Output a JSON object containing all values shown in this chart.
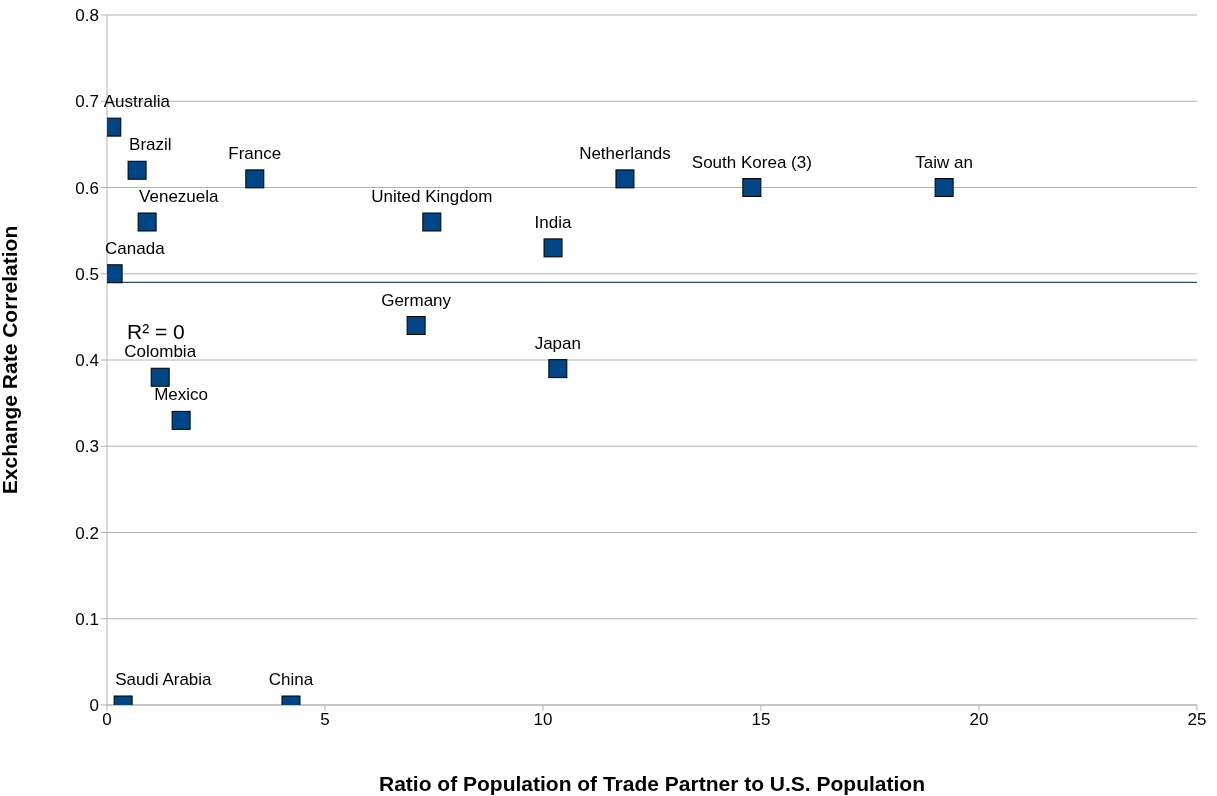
{
  "chart_data": {
    "type": "scatter",
    "xlabel": "Ratio of Population of Trade Partner to U.S. Population",
    "ylabel": "Exchange Rate Correlation",
    "xlim": [
      0,
      25
    ],
    "xticks": [
      0,
      5,
      10,
      15,
      20,
      25
    ],
    "ylim": [
      0,
      0.8
    ],
    "yticks": [
      0,
      0.1,
      0.2,
      0.3,
      0.4,
      0.5,
      0.6,
      0.7,
      0.8
    ],
    "grid": "y",
    "marker": "square",
    "legend": false,
    "series": [
      {
        "color": "#004586",
        "x": [
          0.11,
          0.69,
          0.92,
          0.14,
          3.39,
          7.45,
          10.23,
          11.88,
          14.79,
          19.2,
          7.09,
          10.34,
          1.22,
          1.7,
          0.37,
          4.22
        ],
        "values": [
          0.67,
          0.62,
          0.56,
          0.5,
          0.61,
          0.56,
          0.53,
          0.61,
          0.6,
          0.6,
          0.44,
          0.39,
          0.38,
          0.33,
          0,
          0
        ]
      },
      {
        "type": "line",
        "color": "#2a4a6a",
        "marker": "none",
        "x": [
          0,
          25
        ],
        "values": [
          0.49,
          0.49
        ]
      }
    ],
    "annotations": [
      {
        "text": "Australia",
        "x": 0.11,
        "y": 0.67
      },
      {
        "text": "Brazil",
        "x": 0.69,
        "y": 0.62
      },
      {
        "text": "Venezuela",
        "x": 0.92,
        "y": 0.56
      },
      {
        "text": "Canada",
        "x": 0.14,
        "y": 0.5
      },
      {
        "text": "France",
        "x": 3.39,
        "y": 0.61
      },
      {
        "text": "United Kingdom",
        "x": 7.45,
        "y": 0.56
      },
      {
        "text": "India",
        "x": 10.23,
        "y": 0.53
      },
      {
        "text": "Netherlands",
        "x": 11.88,
        "y": 0.61
      },
      {
        "text": "South Korea (3)",
        "x": 14.79,
        "y": 0.6
      },
      {
        "text": "Taiw an",
        "x": 19.2,
        "y": 0.6
      },
      {
        "text": "Germany",
        "x": 7.09,
        "y": 0.44
      },
      {
        "text": "Japan",
        "x": 10.34,
        "y": 0.39
      },
      {
        "text": "Colombia",
        "x": 1.22,
        "y": 0.38
      },
      {
        "text": "Mexico",
        "x": 1.7,
        "y": 0.33
      },
      {
        "text": "Saudi Arabia",
        "x": 0.37,
        "y": 0
      },
      {
        "text": "China",
        "x": 4.22,
        "y": 0
      },
      "R² = 0"
    ]
  }
}
